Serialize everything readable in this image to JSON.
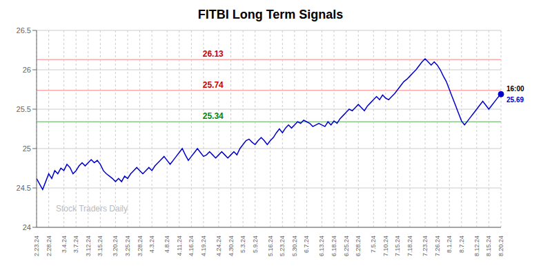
{
  "chart_data": {
    "type": "line",
    "title": "FITBI Long Term Signals",
    "color": "#0000cc",
    "grid": true,
    "ylim": [
      24.0,
      26.5
    ],
    "yticks": [
      24.0,
      24.5,
      25.0,
      25.5,
      26.0,
      26.5
    ],
    "categories": [
      "2.23.24",
      null,
      null,
      null,
      "2.28.24",
      null,
      null,
      null,
      null,
      "3.4.24",
      null,
      null,
      null,
      "3.7.24",
      null,
      null,
      null,
      "3.12.24",
      null,
      null,
      null,
      "3.15.24",
      null,
      null,
      null,
      null,
      "3.20.24",
      null,
      null,
      null,
      "3.25.24",
      null,
      null,
      null,
      "3.28.24",
      null,
      null,
      null,
      "4.3.24",
      null,
      null,
      null,
      null,
      "4.8.24",
      null,
      null,
      null,
      "4.11.24",
      null,
      null,
      null,
      "4.16.24",
      null,
      null,
      null,
      "4.19.24",
      null,
      null,
      null,
      null,
      "4.24.24",
      null,
      null,
      null,
      "4.30.24",
      null,
      null,
      null,
      "5.3.24",
      null,
      null,
      null,
      "5.9.24",
      null,
      null,
      null,
      null,
      "5.16.24",
      null,
      null,
      null,
      "5.23.24",
      null,
      null,
      null,
      "5.30.24",
      null,
      null,
      null,
      "6.7.24",
      null,
      null,
      null,
      null,
      "6.13.24",
      null,
      null,
      null,
      "6.18.24",
      null,
      null,
      null,
      "6.25.24",
      null,
      null,
      null,
      "6.28.24",
      null,
      null,
      null,
      null,
      "7.5.24",
      null,
      null,
      null,
      "7.10.24",
      null,
      null,
      null,
      "7.15.24",
      null,
      null,
      null,
      "7.18.24",
      null,
      null,
      null,
      null,
      "7.23.24",
      null,
      null,
      null,
      "7.26.24",
      null,
      null,
      null,
      "8.1.24",
      null,
      null,
      null,
      "8.7.24",
      null,
      null,
      null,
      null,
      "8.12.24",
      null,
      null,
      null,
      "8.15.24",
      null,
      null,
      null,
      "8.20.24"
    ],
    "values": [
      24.62,
      24.55,
      24.48,
      24.58,
      24.68,
      24.62,
      24.72,
      24.68,
      24.75,
      24.72,
      24.8,
      24.76,
      24.68,
      24.72,
      24.78,
      24.82,
      24.78,
      24.82,
      24.86,
      24.82,
      24.85,
      24.8,
      24.72,
      24.68,
      24.65,
      24.62,
      24.58,
      24.62,
      24.58,
      24.65,
      24.62,
      24.68,
      24.72,
      24.76,
      24.72,
      24.68,
      24.72,
      24.76,
      24.72,
      24.78,
      24.82,
      24.86,
      24.9,
      24.85,
      24.8,
      24.85,
      24.9,
      24.95,
      25.0,
      24.92,
      24.85,
      24.9,
      24.95,
      25.0,
      24.95,
      24.9,
      24.92,
      24.96,
      24.92,
      24.88,
      24.92,
      24.96,
      24.92,
      24.88,
      24.92,
      24.96,
      24.92,
      25.0,
      25.05,
      25.1,
      25.12,
      25.08,
      25.05,
      25.1,
      25.14,
      25.1,
      25.05,
      25.1,
      25.14,
      25.2,
      25.25,
      25.2,
      25.26,
      25.3,
      25.26,
      25.3,
      25.34,
      25.32,
      25.36,
      25.34,
      25.32,
      25.28,
      25.3,
      25.32,
      25.3,
      25.28,
      25.34,
      25.3,
      25.35,
      25.32,
      25.38,
      25.42,
      25.46,
      25.5,
      25.48,
      25.52,
      25.56,
      25.52,
      25.48,
      25.54,
      25.58,
      25.62,
      25.66,
      25.62,
      25.68,
      25.64,
      25.62,
      25.66,
      25.7,
      25.75,
      25.8,
      25.85,
      25.88,
      25.92,
      25.96,
      26.0,
      26.05,
      26.1,
      26.14,
      26.1,
      26.06,
      26.1,
      26.06,
      26.0,
      25.92,
      25.85,
      25.75,
      25.65,
      25.55,
      25.45,
      25.35,
      25.3,
      25.35,
      25.4,
      25.45,
      25.5,
      25.55,
      25.6,
      25.55,
      25.5,
      25.55,
      25.6,
      25.65,
      25.69
    ],
    "reference_lines": [
      {
        "value": 26.13,
        "label": "26.13",
        "color": "#ffaaaa",
        "label_color": "#cc0000"
      },
      {
        "value": 25.74,
        "label": "25.74",
        "color": "#ffaaaa",
        "label_color": "#cc0000"
      },
      {
        "value": 25.34,
        "label": "25.34",
        "color": "#88cc88",
        "label_color": "#008800"
      }
    ],
    "watermark": "Stock Traders Daily",
    "last_labels": [
      "16:00",
      "25.69"
    ]
  }
}
